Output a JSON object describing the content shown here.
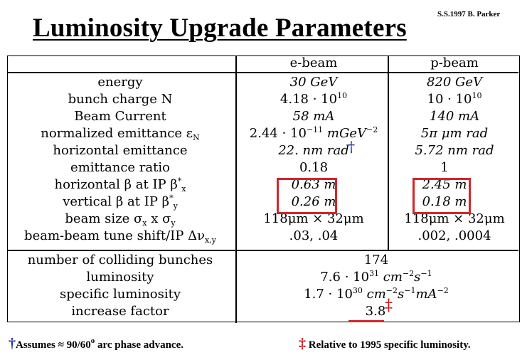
{
  "header": {
    "title": "Luminosity Upgrade Parameters",
    "author": "S.S.1997 B. Parker"
  },
  "table": {
    "col_headers": [
      "e-beam",
      "p-beam"
    ],
    "rows": [
      {
        "label": "energy",
        "e": "30 GeV",
        "p": "820 GeV"
      },
      {
        "label": "bunch charge N",
        "e": "4.18 · 10",
        "e_sup": "10",
        "p": "10 · 10",
        "p_sup": "10"
      },
      {
        "label": "Beam Current",
        "e": "58 mA",
        "p": "140 mA"
      },
      {
        "label": "normalized emittance ε",
        "label_sub": "N",
        "e": "2.44 · 10",
        "e_sup": "−11",
        "e_tail": "mGeV",
        "e_tail_sup": "−2",
        "p": "5π μm rad"
      },
      {
        "label": "horizontal emittance",
        "e": "22. nm rad",
        "e_mark": "†",
        "p": "5.72 nm rad"
      },
      {
        "label": "emittance ratio",
        "e": "0.18",
        "p": "1"
      },
      {
        "label": "horizontal β at IP β",
        "label_sup": "*",
        "label_sub": "x",
        "e": "0.63 m",
        "p": "2.45 m"
      },
      {
        "label": "vertical β at IP β",
        "label_sup": "*",
        "label_sub": "y",
        "e": "0.26 m",
        "p": "0.18 m"
      },
      {
        "label": "beam size σ",
        "label_tail": "x σ",
        "e": "118μm × 32μm",
        "p": "118μm × 32μm"
      },
      {
        "label": "beam-beam tune shift/IP Δν",
        "label_sub": "x,y",
        "e": ".03, .04",
        "p": ".002, .0004"
      }
    ],
    "combined_rows": [
      {
        "label": "number of colliding bunches",
        "value": "174"
      },
      {
        "label": "luminosity",
        "value": "7.6 · 10",
        "value_sup": "31",
        "value_tail": "cm",
        "value_tail_sup": "−2",
        "value_tail2": "s",
        "value_tail2_sup": "−1"
      },
      {
        "label": "specific luminosity",
        "value": "1.7 · 10",
        "value_sup": "30",
        "value_tail": "cm",
        "value_tail_sup": "−2",
        "value_tail2": "s",
        "value_tail2_sup": "−1",
        "value_tail3": "mA",
        "value_tail3_sup": "−2"
      },
      {
        "label": "increase factor",
        "value": "3.8",
        "value_mark": "‡"
      }
    ]
  },
  "footnotes": {
    "dagger_mark": "†",
    "dagger_text": "Assumes ≈ 90/60",
    "dagger_sup": "o",
    "dagger_tail": " arc phase advance.",
    "ddagger_mark": "‡",
    "ddagger_text": "Relative to 1995 specific luminosity."
  },
  "colors": {
    "highlight_box": "#d0262a",
    "dagger": "#1f2fb0",
    "ddagger": "#c8151d"
  }
}
